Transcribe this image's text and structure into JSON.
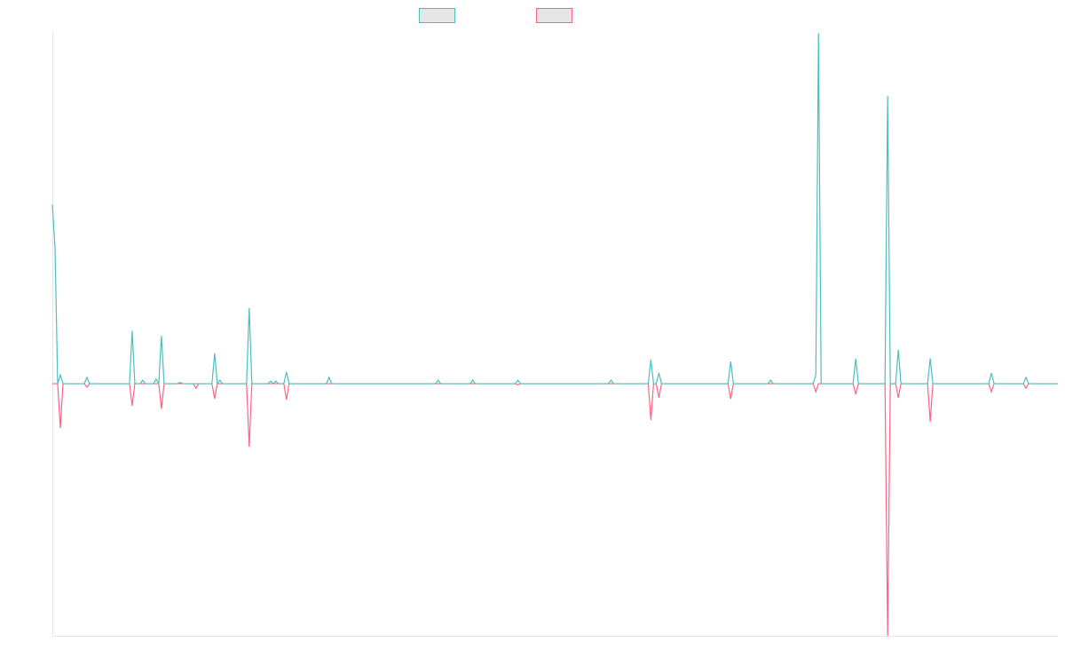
{
  "chart_data": {
    "type": "line",
    "x": [
      0,
      1,
      2,
      3,
      4,
      12,
      13,
      14,
      29,
      30,
      31,
      33,
      34,
      35,
      38,
      39,
      40,
      41,
      42,
      47,
      48,
      49,
      53,
      54,
      55,
      60,
      61,
      62,
      63,
      64,
      73,
      74,
      75,
      81,
      82,
      83,
      84,
      85,
      87,
      88,
      89,
      103,
      104,
      105,
      144,
      145,
      146,
      157,
      158,
      159,
      174,
      175,
      176,
      209,
      210,
      211,
      224,
      225,
      226,
      227,
      228,
      229,
      254,
      255,
      256,
      269,
      270,
      271,
      286,
      287,
      288,
      289,
      301,
      302,
      303,
      313,
      314,
      315,
      317,
      318,
      319,
      329,
      330,
      331,
      352,
      353,
      354,
      365,
      366,
      367,
      378
    ],
    "series": [
      {
        "color": "#4bc0c0",
        "values": [
          0.71,
          0.54,
          0,
          0.035,
          0,
          0,
          0.025,
          0,
          0,
          0.21,
          0,
          0,
          0.014,
          0,
          0,
          0.018,
          0,
          0.19,
          0,
          0,
          0.005,
          0,
          0,
          0,
          0,
          0,
          0.12,
          0,
          0.014,
          0,
          0,
          0.3,
          0,
          0,
          0.01,
          0,
          0.01,
          0,
          0,
          0.046,
          0,
          0,
          0.025,
          0,
          0,
          0.014,
          0,
          0,
          0.014,
          0,
          0,
          0.014,
          0,
          0,
          0.014,
          0,
          0,
          0.095,
          0,
          0,
          0.042,
          0,
          0,
          0.088,
          0,
          0,
          0.014,
          0,
          0,
          0.035,
          1.39,
          0,
          0,
          0.099,
          0,
          0,
          1.14,
          0,
          0,
          0.134,
          0,
          0,
          0.1,
          0,
          0,
          0.042,
          0,
          0,
          0.025,
          0,
          0
        ]
      },
      {
        "color": "#ff6384",
        "values": [
          0,
          0,
          0,
          -0.176,
          0,
          0,
          -0.014,
          0,
          0,
          -0.088,
          0,
          0,
          0,
          0,
          0,
          0,
          0,
          -0.1,
          0,
          0,
          0,
          0,
          0,
          -0.018,
          0,
          0,
          -0.06,
          0,
          0,
          0,
          0,
          -0.25,
          0,
          0,
          0,
          0,
          0,
          0,
          0,
          -0.063,
          0,
          0,
          0,
          0,
          0,
          0,
          0,
          0,
          0,
          0,
          0,
          -0.005,
          0,
          0,
          0,
          0,
          0,
          -0.144,
          0,
          0,
          -0.056,
          0,
          0,
          -0.06,
          0,
          0,
          0,
          0,
          0,
          -0.032,
          0,
          0,
          0,
          -0.042,
          0,
          0,
          -1,
          0,
          0,
          -0.056,
          0,
          0,
          -0.151,
          0,
          0,
          -0.032,
          0,
          0,
          -0.018,
          0,
          0
        ]
      }
    ],
    "xlim": [
      0,
      378
    ],
    "ylim": [
      -1,
      1.395
    ]
  }
}
